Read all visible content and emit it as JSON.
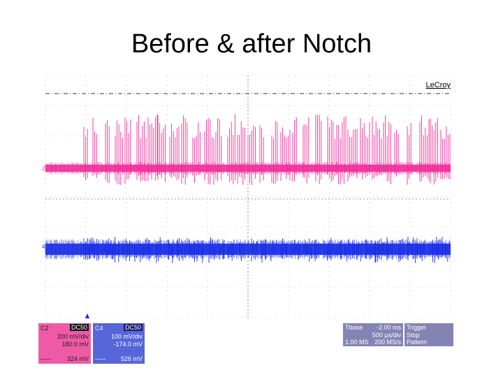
{
  "slide": {
    "title": "Before & after Notch"
  },
  "scope": {
    "brand": "LeCroy",
    "trace_colors": {
      "c2": "#f02c9a",
      "c4": "#1428e6"
    },
    "c2_marker": "2",
    "c4_marker": "4",
    "c2_panel": {
      "channel": "C2",
      "badge": "DC50",
      "vdiv": "200 mV/div",
      "offset": "180.0 mV",
      "bottom_left": "-----",
      "bottom_value": "324 mV",
      "color": "#e8549f"
    },
    "c4_panel": {
      "channel": "C4",
      "badge": "DC50",
      "vdiv": "100 mV/div",
      "offset": "-174.0 mV",
      "bottom_left": "-----",
      "bottom_value": "526 mV",
      "color": "#5060d8"
    },
    "timebase_panel": {
      "label": "Tbase",
      "value": "-2.00 ms",
      "tdiv": "500 µs/div",
      "samples": "1.00 MS",
      "rate": "200 MS/s"
    },
    "trigger_panel": {
      "label": "Trigger",
      "mode": "Stop",
      "type": "Pattern"
    },
    "panel_color": "#8888b8"
  }
}
